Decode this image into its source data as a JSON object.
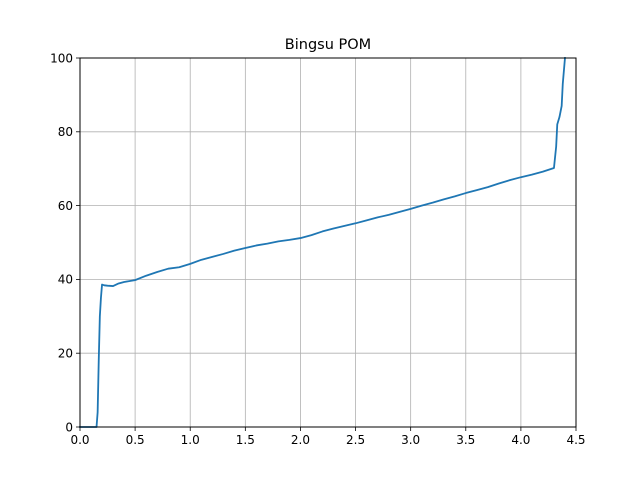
{
  "chart_data": {
    "type": "line",
    "title": "Bingsu POM",
    "xlabel": "",
    "ylabel": "",
    "xlim": [
      0.0,
      4.5
    ],
    "ylim": [
      0,
      100
    ],
    "x_ticks": [
      0.0,
      0.5,
      1.0,
      1.5,
      2.0,
      2.5,
      3.0,
      3.5,
      4.0,
      4.5
    ],
    "x_tick_labels": [
      "0.0",
      "0.5",
      "1.0",
      "1.5",
      "2.0",
      "2.5",
      "3.0",
      "3.5",
      "4.0",
      "4.5"
    ],
    "y_ticks": [
      0,
      20,
      40,
      60,
      80,
      100
    ],
    "y_tick_labels": [
      "0",
      "20",
      "40",
      "60",
      "80",
      "100"
    ],
    "grid": true,
    "legend": "none",
    "series": [
      {
        "color": "#1f77b4",
        "x": [
          0.0,
          0.15,
          0.16,
          0.17,
          0.18,
          0.19,
          0.2,
          0.22,
          0.25,
          0.3,
          0.35,
          0.4,
          0.5,
          0.6,
          0.7,
          0.8,
          0.9,
          1.0,
          1.1,
          1.2,
          1.3,
          1.4,
          1.5,
          1.6,
          1.7,
          1.8,
          1.9,
          2.0,
          2.1,
          2.2,
          2.3,
          2.4,
          2.5,
          2.6,
          2.7,
          2.8,
          2.9,
          3.0,
          3.1,
          3.2,
          3.3,
          3.4,
          3.5,
          3.6,
          3.7,
          3.8,
          3.9,
          4.0,
          4.1,
          4.2,
          4.3,
          4.32,
          4.33,
          4.35,
          4.37,
          4.38,
          4.4
        ],
        "y": [
          0,
          0,
          4,
          18,
          30,
          35,
          38.6,
          38.4,
          38.3,
          38.2,
          38.9,
          39.3,
          39.8,
          41.0,
          42.0,
          42.9,
          43.3,
          44.2,
          45.3,
          46.1,
          46.9,
          47.8,
          48.5,
          49.2,
          49.7,
          50.3,
          50.7,
          51.2,
          52.0,
          53.0,
          53.8,
          54.5,
          55.2,
          56.0,
          56.8,
          57.5,
          58.3,
          59.1,
          60.0,
          60.8,
          61.7,
          62.5,
          63.4,
          64.2,
          65.0,
          66.0,
          66.9,
          67.7,
          68.4,
          69.2,
          70.2,
          76,
          82,
          84,
          87,
          93,
          100
        ]
      }
    ]
  }
}
